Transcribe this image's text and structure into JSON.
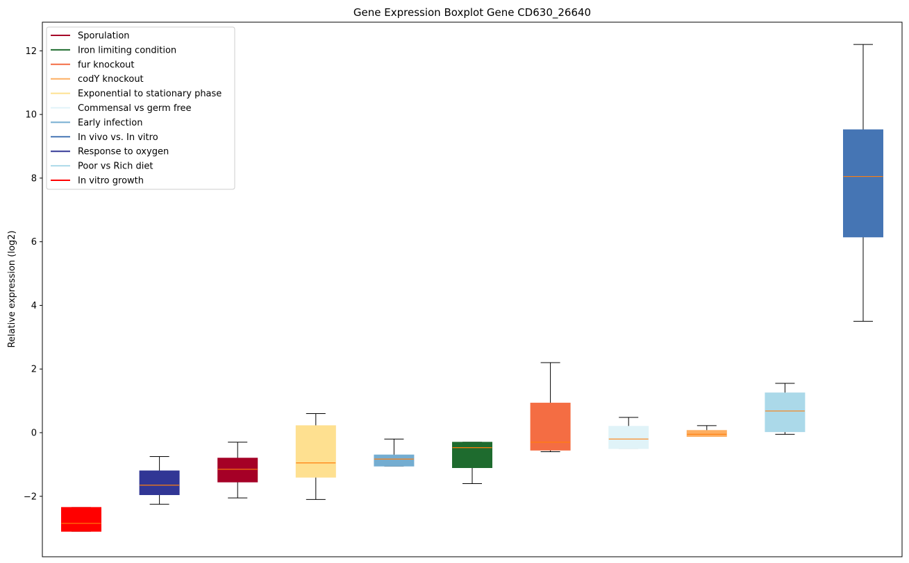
{
  "chart_data": {
    "type": "box",
    "title": "Gene Expression Boxplot Gene CD630_26640",
    "xlabel": "",
    "ylabel": "Relative expression (log2)",
    "ylim": [
      -3.9,
      12.9
    ],
    "yticks": [
      -2,
      0,
      2,
      4,
      6,
      8,
      10,
      12
    ],
    "ytick_labels": [
      "−2",
      "0",
      "2",
      "4",
      "6",
      "8",
      "10",
      "12"
    ],
    "legend_position": "upper-left",
    "grid": false,
    "legend": [
      {
        "label": "Sporulation",
        "color": "#a50026"
      },
      {
        "label": "Iron limiting condition",
        "color": "#1e6b2e"
      },
      {
        "label": "fur knockout",
        "color": "#f46d43"
      },
      {
        "label": "codY knockout",
        "color": "#fdae61"
      },
      {
        "label": "Exponential to stationary phase",
        "color": "#fee090"
      },
      {
        "label": "Commensal vs germ free",
        "color": "#e0f3f8"
      },
      {
        "label": "Early infection",
        "color": "#74add1"
      },
      {
        "label": "In vivo vs. In vitro",
        "color": "#4575b4"
      },
      {
        "label": "Response to oxygen",
        "color": "#313695"
      },
      {
        "label": "Poor vs Rich diet",
        "color": "#abd9e9"
      },
      {
        "label": "In vitro growth",
        "color": "#ff0000"
      }
    ],
    "boxes": [
      {
        "group": "In vitro growth",
        "color": "#ff0000",
        "whislo": -3.1,
        "q1": -3.1,
        "med": -2.85,
        "q3": -2.35,
        "whishi": -2.35
      },
      {
        "group": "Response to oxygen",
        "color": "#313695",
        "whislo": -2.25,
        "q1": -1.95,
        "med": -1.65,
        "q3": -1.2,
        "whishi": -0.75
      },
      {
        "group": "Sporulation",
        "color": "#a50026",
        "whislo": -2.05,
        "q1": -1.55,
        "med": -1.15,
        "q3": -0.8,
        "whishi": -0.3
      },
      {
        "group": "Exponential to stationary phase",
        "color": "#fee090",
        "whislo": -2.1,
        "q1": -1.4,
        "med": -0.95,
        "q3": 0.22,
        "whishi": 0.6
      },
      {
        "group": "Early infection",
        "color": "#74add1",
        "whislo": -1.05,
        "q1": -1.05,
        "med": -0.83,
        "q3": -0.7,
        "whishi": -0.2
      },
      {
        "group": "Iron limiting condition",
        "color": "#1e6b2e",
        "whislo": -1.6,
        "q1": -1.1,
        "med": -0.47,
        "q3": -0.3,
        "whishi": -0.3
      },
      {
        "group": "fur knockout",
        "color": "#f46d43",
        "whislo": -0.6,
        "q1": -0.55,
        "med": -0.3,
        "q3": 0.93,
        "whishi": 2.2
      },
      {
        "group": "Commensal vs germ free",
        "color": "#e0f3f8",
        "whislo": -0.5,
        "q1": -0.5,
        "med": -0.2,
        "q3": 0.2,
        "whishi": 0.48
      },
      {
        "group": "codY knockout",
        "color": "#fdae61",
        "whislo": -0.12,
        "q1": -0.12,
        "med": -0.05,
        "q3": 0.07,
        "whishi": 0.22
      },
      {
        "group": "Poor vs Rich diet",
        "color": "#abd9e9",
        "whislo": -0.05,
        "q1": 0.03,
        "med": 0.68,
        "q3": 1.25,
        "whishi": 1.55
      },
      {
        "group": "In vivo vs. In vitro",
        "color": "#4575b4",
        "whislo": 3.5,
        "q1": 6.15,
        "med": 8.05,
        "q3": 9.52,
        "whishi": 12.2
      }
    ],
    "median_color": "#ff7f0e"
  }
}
